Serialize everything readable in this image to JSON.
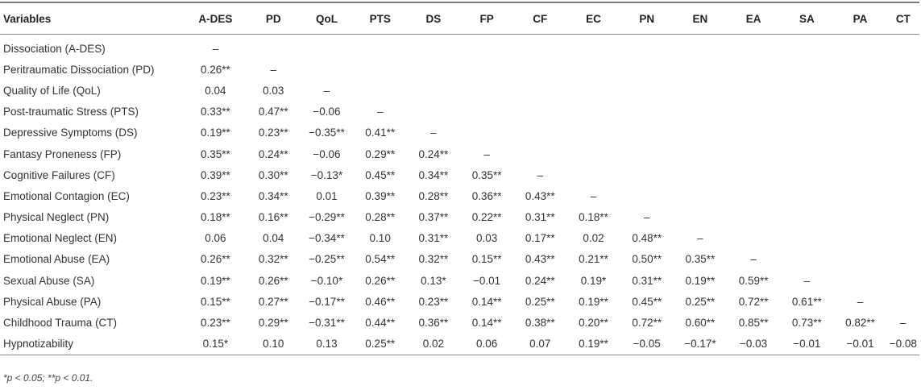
{
  "table": {
    "corner_header": "Variables",
    "columns": [
      "A-DES",
      "PD",
      "QoL",
      "PTS",
      "DS",
      "FP",
      "CF",
      "EC",
      "PN",
      "EN",
      "EA",
      "SA",
      "PA",
      "CT"
    ],
    "rows": [
      {
        "label": "Dissociation (A-DES)",
        "values": [
          "–",
          "",
          "",
          "",
          "",
          "",
          "",
          "",
          "",
          "",
          "",
          "",
          "",
          ""
        ]
      },
      {
        "label": "Peritraumatic Dissociation (PD)",
        "values": [
          "0.26**",
          "–",
          "",
          "",
          "",
          "",
          "",
          "",
          "",
          "",
          "",
          "",
          "",
          ""
        ]
      },
      {
        "label": "Quality of Life (QoL)",
        "values": [
          "0.04",
          "0.03",
          "–",
          "",
          "",
          "",
          "",
          "",
          "",
          "",
          "",
          "",
          "",
          ""
        ]
      },
      {
        "label": "Post-traumatic Stress (PTS)",
        "values": [
          "0.33**",
          "0.47**",
          "−0.06",
          "–",
          "",
          "",
          "",
          "",
          "",
          "",
          "",
          "",
          "",
          ""
        ]
      },
      {
        "label": "Depressive Symptoms (DS)",
        "values": [
          "0.19**",
          "0.23**",
          "−0.35**",
          "0.41**",
          "–",
          "",
          "",
          "",
          "",
          "",
          "",
          "",
          "",
          ""
        ]
      },
      {
        "label": "Fantasy Proneness (FP)",
        "values": [
          "0.35**",
          "0.24**",
          "−0.06",
          "0.29**",
          "0.24**",
          "–",
          "",
          "",
          "",
          "",
          "",
          "",
          "",
          ""
        ]
      },
      {
        "label": "Cognitive Failures (CF)",
        "values": [
          "0.39**",
          "0.30**",
          "−0.13*",
          "0.45**",
          "0.34**",
          "0.35**",
          "–",
          "",
          "",
          "",
          "",
          "",
          "",
          ""
        ]
      },
      {
        "label": "Emotional Contagion (EC)",
        "values": [
          "0.23**",
          "0.34**",
          "0.01",
          "0.39**",
          "0.28**",
          "0.36**",
          "0.43**",
          "–",
          "",
          "",
          "",
          "",
          "",
          ""
        ]
      },
      {
        "label": "Physical Neglect (PN)",
        "values": [
          "0.18**",
          "0.16**",
          "−0.29**",
          "0.28**",
          "0.37**",
          "0.22**",
          "0.31**",
          "0.18**",
          "–",
          "",
          "",
          "",
          "",
          ""
        ]
      },
      {
        "label": "Emotional Neglect (EN)",
        "values": [
          "0.06",
          "0.04",
          "−0.34**",
          "0.10",
          "0.31**",
          "0.03",
          "0.17**",
          "0.02",
          "0.48**",
          "–",
          "",
          "",
          "",
          ""
        ]
      },
      {
        "label": "Emotional Abuse (EA)",
        "values": [
          "0.26**",
          "0.32**",
          "−0.25**",
          "0.54**",
          "0.32**",
          "0.15**",
          "0.43**",
          "0.21**",
          "0.50**",
          "0.35**",
          "–",
          "",
          "",
          ""
        ]
      },
      {
        "label": "Sexual Abuse (SA)",
        "values": [
          "0.19**",
          "0.26**",
          "−0.10*",
          "0.26**",
          "0.13*",
          "−0.01",
          "0.24**",
          "0.19*",
          "0.31**",
          "0.19**",
          "0.59**",
          "–",
          "",
          ""
        ]
      },
      {
        "label": "Physical Abuse (PA)",
        "values": [
          "0.15**",
          "0.27**",
          "−0.17**",
          "0.46**",
          "0.23**",
          "0.14**",
          "0.25**",
          "0.19**",
          "0.45**",
          "0.25**",
          "0.72**",
          "0.61**",
          "–",
          ""
        ]
      },
      {
        "label": "Childhood Trauma (CT)",
        "values": [
          "0.23**",
          "0.29**",
          "−0.31**",
          "0.44**",
          "0.36**",
          "0.14**",
          "0.38**",
          "0.20**",
          "0.72**",
          "0.60**",
          "0.85**",
          "0.73**",
          "0.82**",
          "–"
        ]
      },
      {
        "label": "Hypnotizability",
        "values": [
          "0.15*",
          "0.10",
          "0.13",
          "0.25**",
          "0.02",
          "0.06",
          "0.07",
          "0.19**",
          "−0.05",
          "−0.17*",
          "−0.03",
          "−0.01",
          "−0.01",
          "−0.08"
        ]
      }
    ]
  },
  "footnote": "*p < 0.05; **p < 0.01."
}
